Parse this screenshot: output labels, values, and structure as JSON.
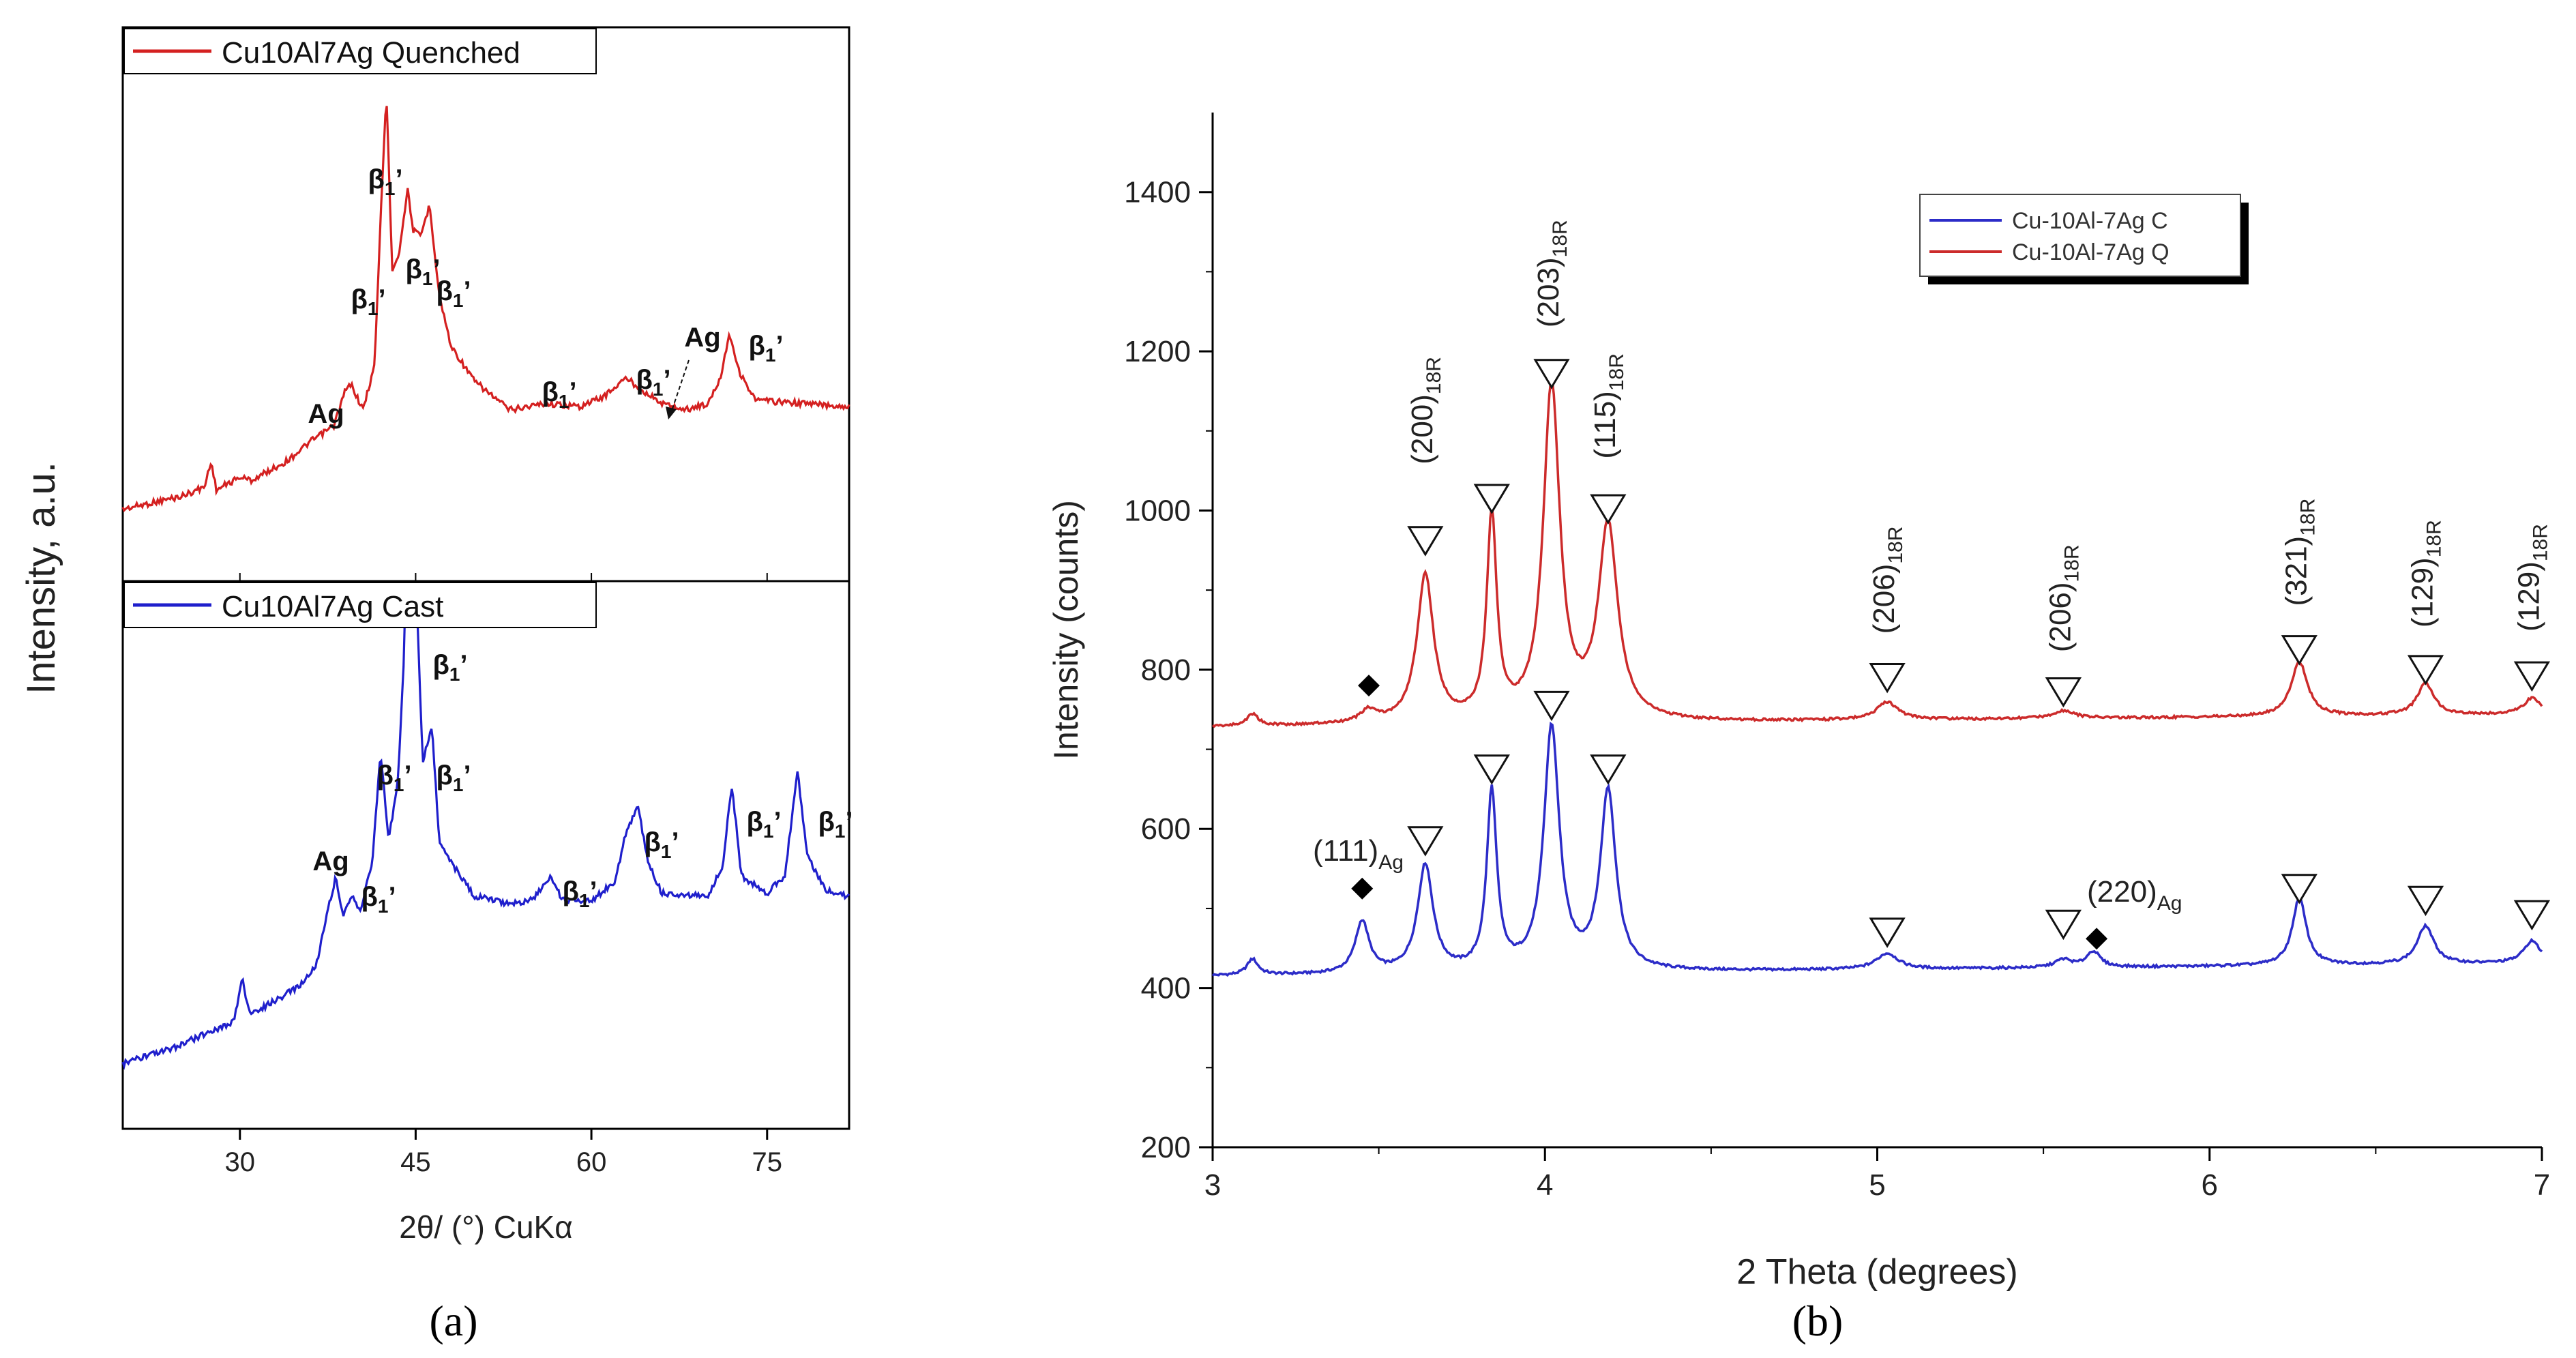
{
  "figure": {
    "panel_a_label": "(a)",
    "panel_b_label": "(b)"
  },
  "chart_data": [
    {
      "id": "a",
      "type": "line",
      "title": "",
      "xlabel": "2θ/ (°) CuKα",
      "ylabel": "Intensity, a.u.",
      "xlim": [
        20,
        82
      ],
      "xticks": [
        "30",
        "45",
        "60",
        "75"
      ],
      "series": [
        {
          "name": "Cu10Al7Ag Quenched",
          "color": "#d42020",
          "points": [
            [
              20,
              0.05
            ],
            [
              25,
              0.09
            ],
            [
              27,
              0.12
            ],
            [
              27.5,
              0.2
            ],
            [
              28,
              0.11
            ],
            [
              30,
              0.15
            ],
            [
              31,
              0.14
            ],
            [
              33,
              0.18
            ],
            [
              34,
              0.2
            ],
            [
              36,
              0.26
            ],
            [
              38,
              0.31
            ],
            [
              39,
              0.42
            ],
            [
              39.5,
              0.44
            ],
            [
              40.5,
              0.36
            ],
            [
              41.5,
              0.5
            ],
            [
              42,
              0.95
            ],
            [
              42.5,
              1.35
            ],
            [
              43,
              0.8
            ],
            [
              43.6,
              0.85
            ],
            [
              44.3,
              1.05
            ],
            [
              44.8,
              0.92
            ],
            [
              45.4,
              0.9
            ],
            [
              46.2,
              1.0
            ],
            [
              47,
              0.72
            ],
            [
              48,
              0.56
            ],
            [
              50,
              0.45
            ],
            [
              53,
              0.36
            ],
            [
              56,
              0.38
            ],
            [
              59,
              0.37
            ],
            [
              61,
              0.4
            ],
            [
              63,
              0.46
            ],
            [
              64,
              0.43
            ],
            [
              66,
              0.38
            ],
            [
              68,
              0.36
            ],
            [
              70,
              0.38
            ],
            [
              71,
              0.46
            ],
            [
              71.8,
              0.6
            ],
            [
              72.6,
              0.48
            ],
            [
              74,
              0.39
            ],
            [
              78,
              0.38
            ],
            [
              82,
              0.37
            ]
          ]
        },
        {
          "name": "Cu10Al7Ag Cast",
          "color": "#1f1fcc",
          "points": [
            [
              20,
              0.08
            ],
            [
              24,
              0.12
            ],
            [
              28,
              0.18
            ],
            [
              29.5,
              0.2
            ],
            [
              30.2,
              0.33
            ],
            [
              30.8,
              0.22
            ],
            [
              33,
              0.26
            ],
            [
              35,
              0.3
            ],
            [
              36.5,
              0.36
            ],
            [
              37.5,
              0.52
            ],
            [
              38.2,
              0.62
            ],
            [
              38.8,
              0.5
            ],
            [
              39.6,
              0.56
            ],
            [
              40.3,
              0.52
            ],
            [
              41.3,
              0.66
            ],
            [
              42,
              0.98
            ],
            [
              42.7,
              0.72
            ],
            [
              43.5,
              0.9
            ],
            [
              44,
              1.25
            ],
            [
              44.5,
              1.98
            ],
            [
              45,
              1.5
            ],
            [
              45.6,
              0.95
            ],
            [
              46.4,
              1.05
            ],
            [
              47,
              0.72
            ],
            [
              48,
              0.66
            ],
            [
              50,
              0.56
            ],
            [
              53,
              0.54
            ],
            [
              55,
              0.55
            ],
            [
              56.5,
              0.62
            ],
            [
              57.5,
              0.55
            ],
            [
              60,
              0.55
            ],
            [
              62,
              0.6
            ],
            [
              63,
              0.75
            ],
            [
              64,
              0.82
            ],
            [
              64.8,
              0.66
            ],
            [
              66,
              0.57
            ],
            [
              70,
              0.56
            ],
            [
              71.2,
              0.65
            ],
            [
              72,
              0.88
            ],
            [
              72.8,
              0.62
            ],
            [
              75,
              0.57
            ],
            [
              76.5,
              0.62
            ],
            [
              77.6,
              0.92
            ],
            [
              78.4,
              0.68
            ],
            [
              80,
              0.58
            ],
            [
              82,
              0.56
            ]
          ]
        }
      ],
      "annotations_quenched": [
        {
          "x": 42.3,
          "text_main": "β",
          "text_sub": "1",
          "text_tail": "’"
        },
        {
          "x": 39.0,
          "text_main": "β",
          "text_sub": "1",
          "text_tail": "’"
        },
        {
          "x": 37.0,
          "text_main": "Ag",
          "text_sub": "",
          "text_tail": ""
        },
        {
          "x": 44.6,
          "text_main": "β",
          "text_sub": "1",
          "text_tail": "’"
        },
        {
          "x": 46.6,
          "text_main": "β",
          "text_sub": "1",
          "text_tail": "’"
        },
        {
          "x": 56.0,
          "text_main": "β",
          "text_sub": "1",
          "text_tail": "’"
        },
        {
          "x": 62.5,
          "text_main": "β",
          "text_sub": "1",
          "text_tail": "’"
        },
        {
          "x": 66.0,
          "text_main": "Ag",
          "text_sub": "",
          "text_tail": ""
        },
        {
          "x": 72.0,
          "text_main": "β",
          "text_sub": "1",
          "text_tail": "’"
        }
      ],
      "annotations_cast": [
        {
          "x": 46.8,
          "text_main": "β",
          "text_sub": "1",
          "text_tail": "’"
        },
        {
          "x": 41.0,
          "text_main": "β",
          "text_sub": "1",
          "text_tail": "’"
        },
        {
          "x": 38.0,
          "text_main": "Ag",
          "text_sub": "",
          "text_tail": ""
        },
        {
          "x": 39.5,
          "text_main": "β",
          "text_sub": "1",
          "text_tail": "’"
        },
        {
          "x": 47.0,
          "text_main": "β",
          "text_sub": "1",
          "text_tail": "’"
        },
        {
          "x": 57.0,
          "text_main": "β",
          "text_sub": "1",
          "text_tail": "’"
        },
        {
          "x": 64.0,
          "text_main": "β",
          "text_sub": "1",
          "text_tail": "’"
        },
        {
          "x": 72.0,
          "text_main": "β",
          "text_sub": "1",
          "text_tail": "’"
        },
        {
          "x": 78.0,
          "text_main": "β",
          "text_sub": "1",
          "text_tail": "’"
        }
      ]
    },
    {
      "id": "b",
      "type": "line",
      "title": "",
      "xlabel": "2 Theta (degrees)",
      "ylabel": "Intensity (counts)",
      "xlim": [
        3,
        7
      ],
      "ylim": [
        200,
        1500
      ],
      "xticks": [
        "3",
        "4",
        "5",
        "6",
        "7"
      ],
      "yticks": [
        "200",
        "400",
        "600",
        "800",
        "1000",
        "1200",
        "1400"
      ],
      "legend": [
        "Cu-10Al-7Ag C",
        "Cu-10Al-7Ag Q"
      ],
      "series": [
        {
          "name": "Cu-10Al-7Ag C",
          "color": "#2c2cc8",
          "baseline": 415,
          "peaks": [
            [
              3.12,
              20,
              0.02
            ],
            [
              3.45,
              65,
              0.025
            ],
            [
              3.64,
              135,
              0.028
            ],
            [
              3.84,
              225,
              0.018
            ],
            [
              4.02,
              305,
              0.028
            ],
            [
              4.19,
              225,
              0.028
            ],
            [
              5.03,
              20,
              0.04
            ],
            [
              5.56,
              10,
              0.03
            ],
            [
              5.65,
              20,
              0.025
            ],
            [
              6.27,
              85,
              0.025
            ],
            [
              6.65,
              48,
              0.03
            ],
            [
              6.97,
              28,
              0.03
            ]
          ]
        },
        {
          "name": "Cu-10Al-7Ag Q",
          "color": "#cc2b2b",
          "baseline": 728,
          "peaks": [
            [
              3.12,
              15,
              0.02
            ],
            [
              3.47,
              15,
              0.03
            ],
            [
              3.64,
              185,
              0.03
            ],
            [
              3.84,
              255,
              0.018
            ],
            [
              4.02,
              420,
              0.03
            ],
            [
              4.19,
              243,
              0.035
            ],
            [
              5.03,
              22,
              0.04
            ],
            [
              5.56,
              10,
              0.04
            ],
            [
              6.27,
              68,
              0.03
            ],
            [
              6.65,
              40,
              0.03
            ],
            [
              6.97,
              20,
              0.03
            ]
          ]
        }
      ],
      "markers_q": [
        {
          "x": 3.47,
          "symbol": "diamond"
        },
        {
          "x": 3.64,
          "symbol": "triangle"
        },
        {
          "x": 3.84,
          "symbol": "triangle"
        },
        {
          "x": 4.02,
          "symbol": "triangle"
        },
        {
          "x": 4.19,
          "symbol": "triangle"
        },
        {
          "x": 5.03,
          "symbol": "triangle"
        },
        {
          "x": 5.56,
          "symbol": "triangle"
        },
        {
          "x": 6.27,
          "symbol": "triangle"
        },
        {
          "x": 6.65,
          "symbol": "triangle"
        },
        {
          "x": 6.97,
          "symbol": "triangle"
        }
      ],
      "markers_c": [
        {
          "x": 3.45,
          "symbol": "diamond"
        },
        {
          "x": 3.64,
          "symbol": "triangle"
        },
        {
          "x": 3.84,
          "symbol": "triangle"
        },
        {
          "x": 4.02,
          "symbol": "triangle"
        },
        {
          "x": 4.19,
          "symbol": "triangle"
        },
        {
          "x": 5.03,
          "symbol": "triangle"
        },
        {
          "x": 5.56,
          "symbol": "triangle"
        },
        {
          "x": 5.66,
          "symbol": "diamond"
        },
        {
          "x": 6.27,
          "symbol": "triangle"
        },
        {
          "x": 6.65,
          "symbol": "triangle"
        },
        {
          "x": 6.97,
          "symbol": "triangle"
        }
      ],
      "hkl_labels": [
        {
          "x": 3.64,
          "text": "(200)",
          "sub": "18R"
        },
        {
          "x": 4.02,
          "text": "(203)",
          "sub": "18R",
          "bar": "2"
        },
        {
          "x": 4.19,
          "text": "(115)",
          "sub": "18R"
        },
        {
          "x": 5.03,
          "text": "(206)",
          "sub": "18R",
          "bar": "2"
        },
        {
          "x": 5.56,
          "text": "(206)",
          "sub": "18R"
        },
        {
          "x": 6.27,
          "text": "(321)",
          "sub": "18R",
          "bar": "3"
        },
        {
          "x": 6.65,
          "text": "(129)",
          "sub": "18R",
          "bar": "1"
        },
        {
          "x": 6.97,
          "text": "(129)",
          "sub": "18R"
        }
      ],
      "ag_labels": [
        {
          "x": 3.45,
          "text": "(111)",
          "sub": "Ag"
        },
        {
          "x": 5.66,
          "text": "(220)",
          "sub": "Ag"
        }
      ]
    }
  ]
}
